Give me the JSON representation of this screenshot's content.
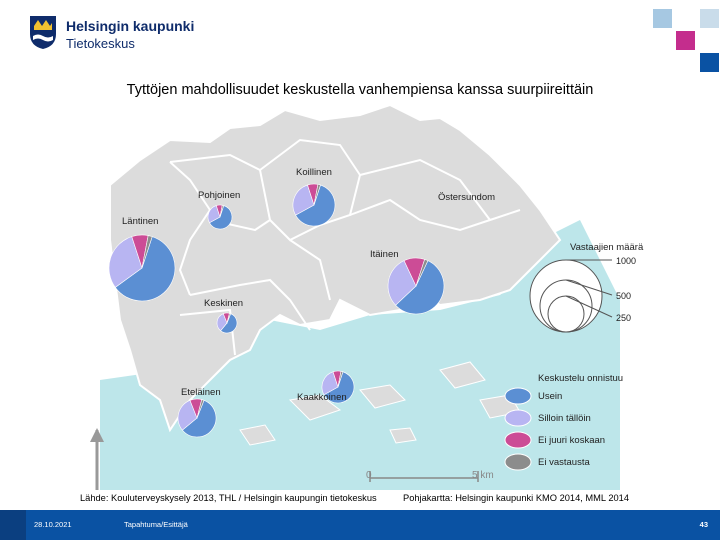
{
  "header": {
    "org_name": "Helsingin kaupunki",
    "dept_name": "Tietokeskus"
  },
  "title": "Tyttöjen mahdollisuudet keskustella vanhempiensa kanssa suurpiireittäin",
  "colors": {
    "often": "#5b8fd3",
    "sometimes": "#b8b5f2",
    "rarely": "#cc4c96",
    "no_answer": "#8c8c8c",
    "land": "#dcdcdc",
    "sea": "#bde6ea",
    "brand_blue": "#0a52a3"
  },
  "map": {
    "scale_labels": [
      "0",
      "5 km"
    ],
    "districts": [
      {
        "name": "Läntinen",
        "sizes": {
          "often": 60,
          "sometimes": 30,
          "rarely": 8,
          "no_answer": 2
        }
      },
      {
        "name": "Pohjoinen",
        "sizes": {
          "often": 62,
          "sometimes": 28,
          "rarely": 8,
          "no_answer": 2
        }
      },
      {
        "name": "Koillinen",
        "sizes": {
          "often": 62,
          "sometimes": 28,
          "rarely": 8,
          "no_answer": 2
        }
      },
      {
        "name": "Östersundom",
        "sizes": null
      },
      {
        "name": "Itäinen",
        "sizes": {
          "often": 56,
          "sometimes": 30,
          "rarely": 12,
          "no_answer": 2
        }
      },
      {
        "name": "Keskinen",
        "sizes": {
          "often": 55,
          "sometimes": 33,
          "rarely": 10,
          "no_answer": 2
        }
      },
      {
        "name": "Kaakkoinen",
        "sizes": {
          "often": 62,
          "sometimes": 28,
          "rarely": 8,
          "no_answer": 2
        }
      },
      {
        "name": "Eteläinen",
        "sizes": {
          "often": 58,
          "sometimes": 30,
          "rarely": 10,
          "no_answer": 2
        }
      }
    ]
  },
  "legend": {
    "size_title": "Vastaajien määrä",
    "size_values": [
      "1000",
      "500",
      "250"
    ],
    "category_title": "Keskustelu onnistuu",
    "categories": [
      {
        "key": "often",
        "label": "Usein"
      },
      {
        "key": "sometimes",
        "label": "Silloin tällöin"
      },
      {
        "key": "rarely",
        "label": "Ei juuri koskaan"
      },
      {
        "key": "no_answer",
        "label": "Ei vastausta"
      }
    ]
  },
  "source_left": "Lähde: Kouluterveyskysely 2013, THL / Helsingin kaupungin tietokeskus",
  "source_right": "Pohjakartta: Helsingin kaupunki KMO 2014, MML 2014",
  "footer": {
    "date": "28.10.2021",
    "event": "Tapahtuma/Esittäjä",
    "page": "43"
  }
}
